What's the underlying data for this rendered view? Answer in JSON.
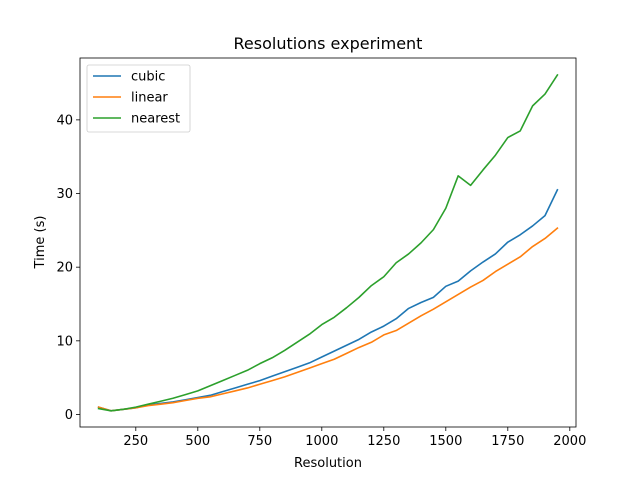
{
  "chart_data": {
    "type": "line",
    "title": "Resolutions experiment",
    "xlabel": "Resolution",
    "ylabel": "Time (s)",
    "xlim": [
      25,
      2025
    ],
    "ylim": [
      -1.7,
      48.4
    ],
    "xticks": [
      250,
      500,
      750,
      1000,
      1250,
      1500,
      1750,
      2000
    ],
    "yticks": [
      0,
      10,
      20,
      30,
      40
    ],
    "grid": false,
    "legend_position": "upper-left",
    "x": [
      100,
      150,
      200,
      250,
      300,
      350,
      400,
      450,
      500,
      550,
      600,
      650,
      700,
      750,
      800,
      850,
      900,
      950,
      1000,
      1050,
      1100,
      1150,
      1200,
      1250,
      1300,
      1350,
      1400,
      1450,
      1500,
      1550,
      1600,
      1650,
      1700,
      1750,
      1800,
      1850,
      1900,
      1950
    ],
    "series": [
      {
        "name": "cubic",
        "color": "#1f77b4",
        "values": [
          1.0,
          0.5,
          0.7,
          0.9,
          1.3,
          1.5,
          1.7,
          2.0,
          2.3,
          2.6,
          3.1,
          3.6,
          4.1,
          4.6,
          5.2,
          5.8,
          6.4,
          7.0,
          7.8,
          8.6,
          9.4,
          10.2,
          11.2,
          12.0,
          13.0,
          14.4,
          15.2,
          15.9,
          17.4,
          18.1,
          19.5,
          20.7,
          21.8,
          23.4,
          24.4,
          25.6,
          27.0,
          30.5
        ]
      },
      {
        "name": "linear",
        "color": "#ff7f0e",
        "values": [
          1.0,
          0.5,
          0.7,
          0.9,
          1.2,
          1.4,
          1.6,
          1.9,
          2.2,
          2.4,
          2.8,
          3.2,
          3.6,
          4.1,
          4.6,
          5.1,
          5.7,
          6.3,
          6.9,
          7.5,
          8.3,
          9.1,
          9.8,
          10.8,
          11.4,
          12.4,
          13.4,
          14.3,
          15.3,
          16.3,
          17.3,
          18.2,
          19.4,
          20.4,
          21.4,
          22.8,
          23.9,
          25.3
        ]
      },
      {
        "name": "nearest",
        "color": "#2ca02c",
        "values": [
          0.8,
          0.5,
          0.7,
          1.0,
          1.4,
          1.8,
          2.2,
          2.7,
          3.2,
          3.9,
          4.6,
          5.3,
          6.0,
          6.9,
          7.7,
          8.7,
          9.8,
          10.9,
          12.2,
          13.2,
          14.5,
          15.9,
          17.5,
          18.7,
          20.6,
          21.8,
          23.3,
          25.1,
          28.0,
          32.4,
          31.1,
          33.2,
          35.2,
          37.6,
          38.5,
          41.9,
          43.5,
          46.1
        ]
      }
    ]
  }
}
